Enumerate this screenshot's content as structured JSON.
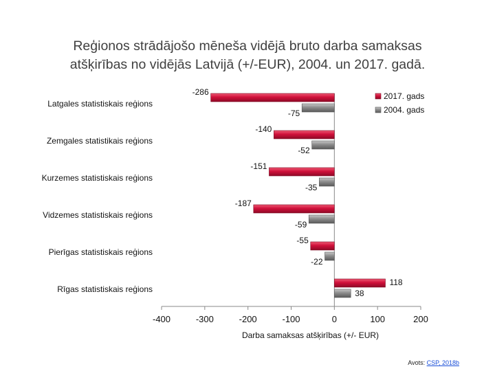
{
  "slide": {
    "title_line1": "Reģionos strādājošo mēneša vidējā bruto darba samaksas",
    "title_line2": "atšķirības no vidējās Latvijā (+/-EUR), 2004. un 2017. gadā.",
    "source_prefix": "Avots: ",
    "source_link": "CSP, 2018b"
  },
  "chart_data": {
    "type": "bar",
    "orientation": "horizontal",
    "categories": [
      "Latgales statistiskais reģions",
      "Zemgales statistikais reģions",
      "Kurzemes statistiskais reģions",
      "Vidzemes statistiskais reģions",
      "Pierīgas statistiskais reģions",
      "Rīgas statistiskais reģions"
    ],
    "series": [
      {
        "name": "2017. gads",
        "values": [
          -286,
          -140,
          -151,
          -187,
          -55,
          118
        ],
        "color": "#d0103a"
      },
      {
        "name": "2004. gads",
        "values": [
          -75,
          -52,
          -35,
          -59,
          -22,
          38
        ],
        "color": "#8c8c8c"
      }
    ],
    "xlabel": "Darba samaksas atšķirības (+/- EUR)",
    "xlim": [
      -400,
      200
    ],
    "xticks": [
      -400,
      -300,
      -200,
      -100,
      0,
      100,
      200
    ],
    "grid": false,
    "legend_position": "top-right"
  }
}
